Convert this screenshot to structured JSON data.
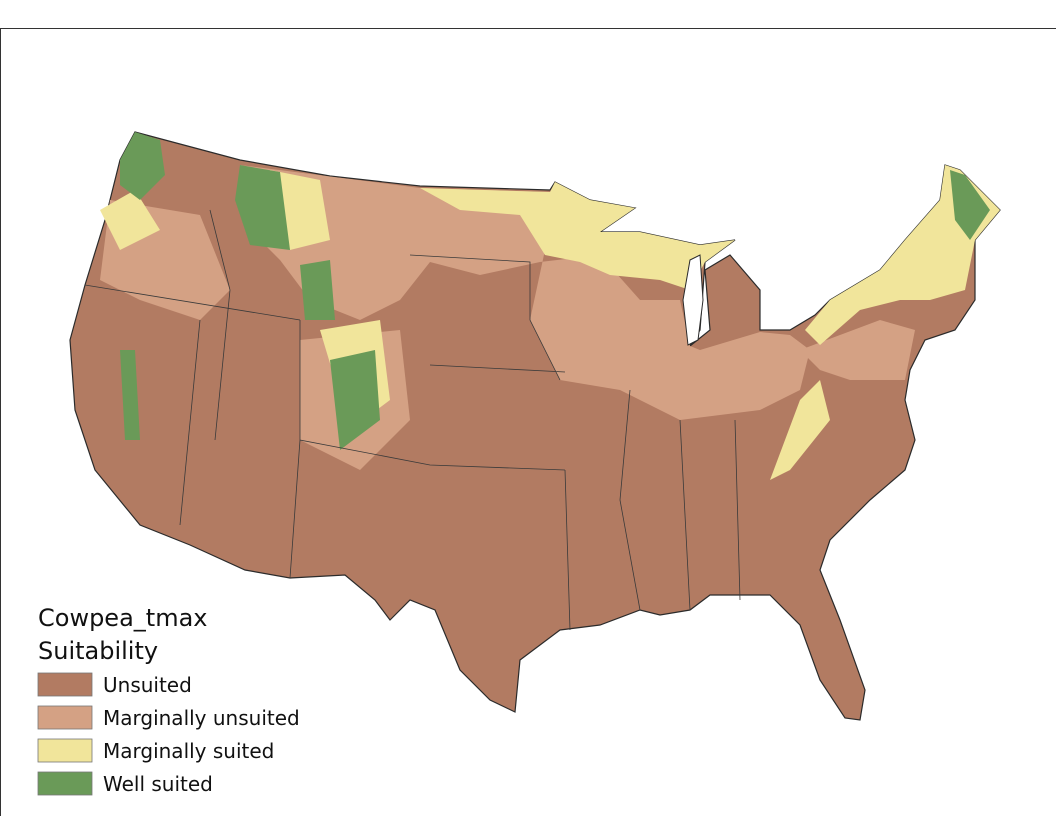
{
  "legend": {
    "title": [
      "Cowpea_tmax",
      "Suitability"
    ],
    "items": [
      {
        "label": "Unsuited",
        "color": "#b27b62"
      },
      {
        "label": "Marginally unsuited",
        "color": "#d4a184"
      },
      {
        "label": "Marginally suited",
        "color": "#f1e59b"
      },
      {
        "label": "Well suited",
        "color": "#6a9a58"
      }
    ]
  }
}
